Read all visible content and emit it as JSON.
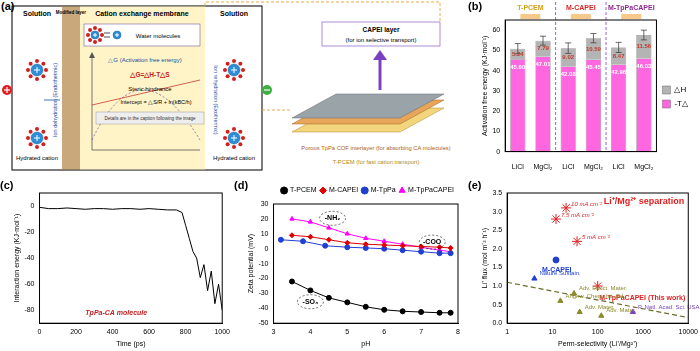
{
  "diagram": {
    "panel_label": "(a)",
    "left_solution": "Solution",
    "modified_layer": "Modified layer",
    "membrane": "Cation exchange membrane",
    "right_solution": "Solution",
    "water": "Water molecules",
    "dehydration": "Ion dehydration (Endothermic)",
    "rehydration": "Ion rehydration (Exothermic)",
    "activation": "△G (Activation free energy)",
    "equation": "△G=△H-T△S",
    "steric": "Steric hindrance",
    "intercept": "Intercept = △S/R + ln(kBC/h)",
    "caption_note": "Details are in the caption following the image",
    "hydrated_left": "Hydrated cation",
    "hydrated_right": "Hydrated cation",
    "capei_title": "CAPEI layer",
    "capei_note": "(for ion selective transport)",
    "tppa": "Porous TpPa COF interlayer (for absorbing CA molecules)",
    "tpcem": "T-PCEM (for fast cation transport)"
  },
  "chart_data": [
    {
      "panel_label": "(b)",
      "type": "bar",
      "stacked": true,
      "data_labels": true,
      "legend": "right",
      "grid": false,
      "categories": [
        "LiCl",
        "MgCl₂",
        "LiCl",
        "MgCl₂",
        "LiCl",
        "MgCl₂"
      ],
      "groups": [
        {
          "name": "T-PCEM",
          "color": "#d4a017"
        },
        {
          "name": "M-CAPEI",
          "color": "#d62728"
        },
        {
          "name": "M-TpPaCAPEI",
          "color": "#8b2a8b"
        }
      ],
      "y_label": "Activation free energy (KJ·mol⁻¹)",
      "ylim": [
        0,
        65
      ],
      "yticks": [
        0,
        10,
        20,
        30,
        40,
        50,
        60
      ],
      "series": [
        {
          "name": "-T△",
          "color": "#ff66e0",
          "values": [
            45.6,
            47.01,
            42.08,
            45.45,
            42.98,
            46.03
          ],
          "value_labels": [
            "45.60",
            "47.01",
            "42.08",
            "45.45",
            "42.98",
            "46.03"
          ]
        },
        {
          "name": "△H",
          "color": "#b4b4b4",
          "values": [
            5.24,
            7.79,
            9.02,
            10.59,
            8.47,
            11.56
          ],
          "value_labels": [
            "5.24",
            "7.79",
            "9.02",
            "10.59",
            "8.47",
            "11.56"
          ],
          "errors": [
            2.5,
            2.2,
            2.6,
            2.3,
            2.5,
            2.4
          ]
        }
      ]
    },
    {
      "panel_label": "(c)",
      "type": "line",
      "grid": false,
      "x_label": "Time (ps)",
      "y_label": "Interaction energy (KJ·mol⁻¹)",
      "annotations": [
        "TpPa-CA molecule"
      ],
      "xlim": [
        0,
        1000
      ],
      "xticks": [
        0,
        200,
        400,
        600,
        800,
        1000
      ],
      "ylim": [
        -90,
        10
      ],
      "yticks": [
        -80,
        -60,
        -40,
        -20,
        0
      ],
      "series": [
        {
          "color": "#000000",
          "x": [
            0,
            50,
            100,
            150,
            200,
            250,
            300,
            350,
            400,
            450,
            500,
            550,
            600,
            650,
            700,
            750,
            780,
            800,
            820,
            840,
            860,
            880,
            900,
            920,
            940,
            960,
            980,
            1000
          ],
          "values": [
            -1,
            -2,
            -2,
            -1.5,
            -2,
            -2.5,
            -2,
            -2,
            -2.5,
            -2,
            -2,
            -2.5,
            -2,
            -2.5,
            -3,
            -3,
            -5,
            -15,
            -25,
            -35,
            -40,
            -55,
            -45,
            -65,
            -50,
            -75,
            -60,
            -80
          ]
        }
      ]
    },
    {
      "panel_label": "(d)",
      "type": "line",
      "grid": false,
      "legend": "top-right",
      "x_label": "pH",
      "y_label": "Zeta potential (mV)",
      "annotations": [
        "-NH₂",
        "-COO",
        "-SO₃"
      ],
      "xlim": [
        3,
        8
      ],
      "xticks": [
        3,
        4,
        5,
        6,
        7,
        8
      ],
      "ylim": [
        -50,
        30
      ],
      "yticks": [
        -50,
        -40,
        -30,
        -20,
        -10,
        0,
        10,
        20,
        30
      ],
      "series": [
        {
          "name": "T-PCEM",
          "color": "#000000",
          "marker": "circle",
          "x": [
            3.5,
            4,
            4.5,
            5,
            5.5,
            6,
            6.5,
            7,
            7.5,
            7.8
          ],
          "values": [
            -22,
            -28,
            -33,
            -36,
            -39,
            -41,
            -42,
            -42.5,
            -43,
            -43
          ]
        },
        {
          "name": "M-CAPEI",
          "color": "#e00000",
          "marker": "diamond",
          "x": [
            3.5,
            4,
            4.5,
            5,
            5.5,
            6,
            6.5,
            7,
            7.5,
            7.8
          ],
          "values": [
            9,
            8,
            6,
            4,
            3,
            2.5,
            2,
            1.5,
            1,
            0.5
          ]
        },
        {
          "name": "M-TpPa",
          "color": "#1f3fd0",
          "marker": "circle",
          "x": [
            3.2,
            3.8,
            4.4,
            5,
            5.5,
            6,
            6.5,
            7,
            7.5,
            7.8
          ],
          "values": [
            6,
            5,
            2,
            1,
            0.5,
            0,
            -1,
            -2,
            -3,
            -3
          ]
        },
        {
          "name": "M-TpPaCAPEI",
          "color": "#ff00ff",
          "marker": "triangle",
          "x": [
            3.5,
            4,
            4.5,
            5,
            5.5,
            6,
            6.5,
            7,
            7.5,
            7.8
          ],
          "values": [
            20,
            18,
            14,
            10,
            7,
            5,
            3,
            1,
            -1,
            -2
          ]
        }
      ]
    },
    {
      "panel_label": "(e)",
      "type": "scatter",
      "log": "x",
      "grid": false,
      "title": "Li⁺/Mg²⁺ separation",
      "x_label": "Perm-selectivity (Li⁺/Mg²⁺)",
      "y_label": "Li⁺ flux (mol m⁻² h⁻¹)",
      "xlim": [
        1,
        10000
      ],
      "xticks": [
        1,
        10,
        100,
        1000,
        10000
      ],
      "ylim": [
        0,
        3.5
      ],
      "yticks": [
        {
          "value": 0,
          "label": "0.0"
        },
        {
          "value": 0.5,
          "label": "0.5"
        },
        {
          "value": 1,
          "label": "1.0"
        },
        {
          "value": 1.5,
          "label": "1.5"
        },
        {
          "value": 2,
          "label": "2.0"
        },
        {
          "value": 2.5,
          "label": "2.5"
        },
        {
          "value": 3,
          "label": "3.0"
        },
        {
          "value": 3.5,
          "label": "3.5"
        }
      ],
      "series": [
        {
          "name": "M-TpPaCAPEI (This work)",
          "color": "#e02020",
          "marker": "star",
          "x": [
            20,
            12,
            35,
            100
          ],
          "values": [
            3.1,
            2.8,
            2.2,
            1.0
          ],
          "point_labels": [
            "10 mA cm⁻²",
            "7.5 mA cm⁻²",
            "5 mA cm⁻²",
            null
          ]
        },
        {
          "name": "M-CAPEI",
          "color": "#1f3fd0",
          "marker": "circle",
          "x": [
            12
          ],
          "values": [
            1.7
          ]
        },
        {
          "marker": "triangle",
          "colors": [
            "#1f3fd0",
            "#8a8a2a",
            "#8a8a2a",
            "#8a8a2a",
            "#8a8a2a",
            "#7a40c0"
          ],
          "x": [
            4,
            15,
            30,
            40,
            120,
            600
          ],
          "values": [
            1.2,
            0.6,
            0.8,
            0.3,
            0.2,
            0.3
          ],
          "point_labels": [
            "Nature Sustain.",
            "Angew. Chem. Int. Ed.",
            "Adv. Funct. Mater.",
            "Adv. Mater.",
            "Adv. Mater.",
            "P. Natl. Acad. Sci. USA"
          ]
        }
      ],
      "trend_line": {
        "x": [
          1,
          10000
        ],
        "values": [
          1.1,
          0.15
        ],
        "color": "#6b6b2a",
        "line_style": "dashed"
      }
    }
  ]
}
